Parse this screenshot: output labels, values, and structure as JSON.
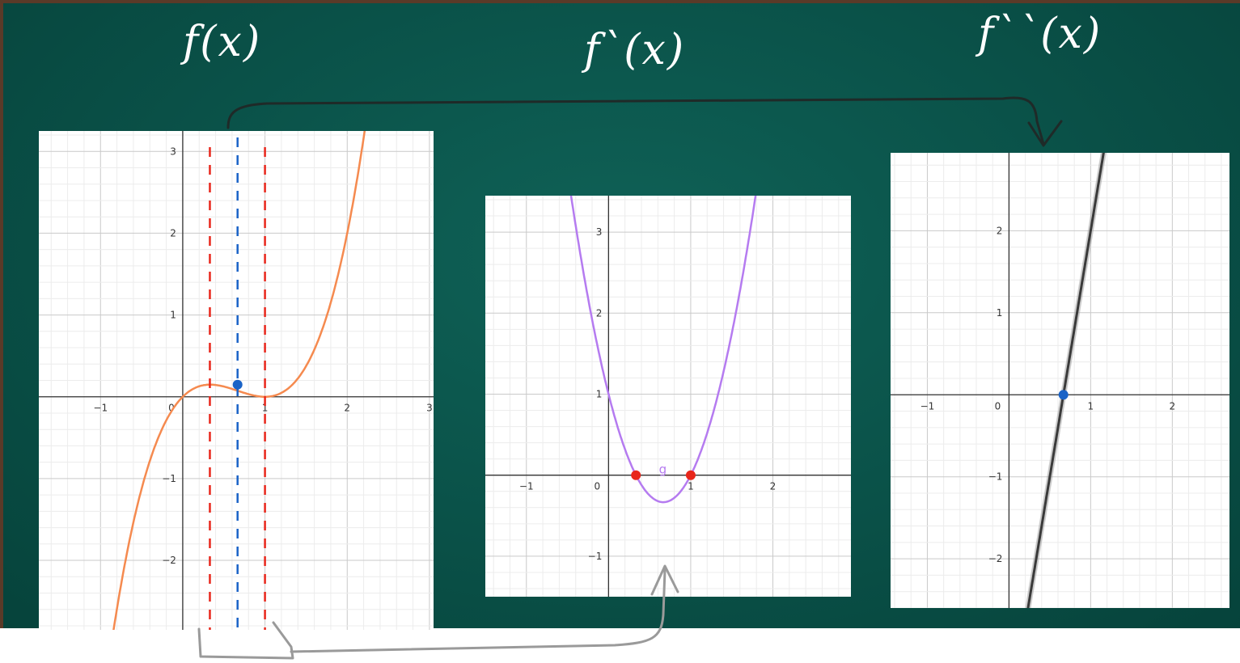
{
  "labels": {
    "f": "f(x)",
    "f_prime": "f`(x)",
    "f_double_prime": "f``(x)"
  },
  "colors": {
    "board": "#0a5148",
    "f_curve": "#f58a4f",
    "fp_curve": "#b57bf0",
    "fpp_curve": "#3a3a3a",
    "red_marker": "#e8261b",
    "blue_marker": "#1a63c7",
    "arrow": "#2a2a2a"
  },
  "chart_data": [
    {
      "type": "line",
      "name": "f",
      "function": "x^3 - 2x^2 + x",
      "xlim": [
        -1.75,
        3.05
      ],
      "ylim": [
        -2.85,
        3.25
      ],
      "x_ticks": [
        -1,
        0,
        1,
        2,
        3
      ],
      "y_ticks": [
        -2,
        -1,
        1,
        2,
        3
      ],
      "x_tick_labels": [
        "−1",
        "0",
        "1",
        "2",
        "3"
      ],
      "y_tick_labels": [
        "−2",
        "−1",
        "1",
        "2",
        "3"
      ],
      "grid": true,
      "point": {
        "x": 0.6667,
        "y": 0.1481
      },
      "red_dashed_verticals": [
        0.33,
        1.0
      ],
      "blue_dashed_vertical": 0.6667
    },
    {
      "type": "line",
      "name": "f_prime",
      "function": "3x^2 - 4x + 1",
      "series_label": "g",
      "xlim": [
        -1.5,
        2.95
      ],
      "ylim": [
        -1.5,
        3.45
      ],
      "x_ticks": [
        -1,
        0,
        1,
        2
      ],
      "y_ticks": [
        -1,
        1,
        2,
        3
      ],
      "x_tick_labels": [
        "−1",
        "0",
        "1",
        "2"
      ],
      "y_tick_labels": [
        "−1",
        "1",
        "2",
        "3"
      ],
      "grid": true,
      "roots": [
        0.3333,
        1.0
      ]
    },
    {
      "type": "line",
      "name": "f_double_prime",
      "function": "6x - 4",
      "xlim": [
        -1.45,
        2.7
      ],
      "ylim": [
        -2.6,
        2.95
      ],
      "x_ticks": [
        -1,
        0,
        1,
        2
      ],
      "y_ticks": [
        -2,
        -1,
        1,
        2
      ],
      "x_tick_labels": [
        "−1",
        "0",
        "1",
        "2"
      ],
      "y_tick_labels": [
        "−2",
        "−1",
        "1",
        "2"
      ],
      "grid": true,
      "root": 0.6667
    }
  ]
}
